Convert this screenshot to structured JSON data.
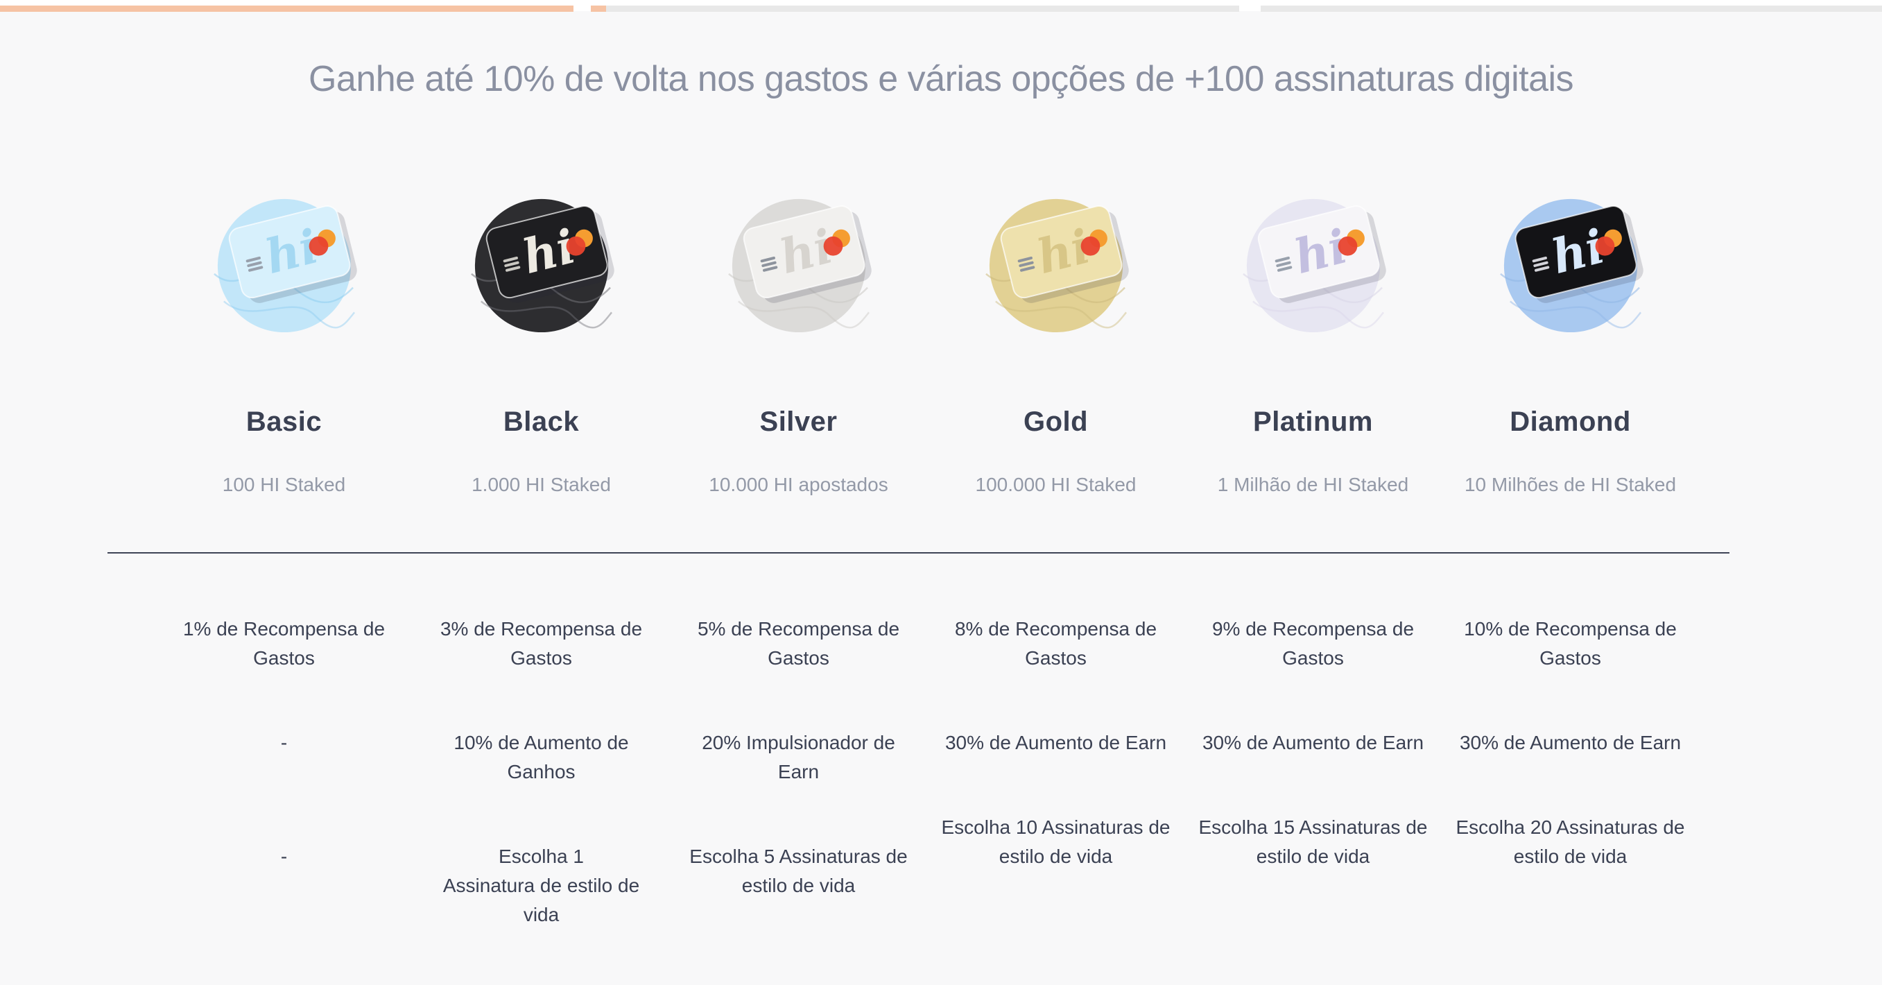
{
  "theme": {
    "accent_orange": "#f6c3a4",
    "track_gray": "#e8e8e8",
    "page_bg": "#f8f8f9",
    "heading_dark": "#3b4153",
    "muted_gray": "#9399a7",
    "title_gray": "#8a90a1",
    "divider_dark": "#3e4456",
    "mc_red": "#e8432e",
    "mc_orange": "#f59d31"
  },
  "carousel": {
    "segments": [
      {
        "state": "complete",
        "fill_pct": 100
      },
      {
        "state": "active",
        "fill_pct": 2.4
      },
      {
        "state": "upcoming",
        "fill_pct": 0
      }
    ]
  },
  "header": {
    "title": "Ganhe até 10% de volta nos gastos e várias opções de +100 assinaturas digitais"
  },
  "tiers": [
    {
      "name": "Basic",
      "staked": "100 HI Staked",
      "icon": {
        "script_text": "hi",
        "circle": "#c2e6f9",
        "card": "#d7f0fc",
        "script": "#a4d8f2",
        "swirl": "#8fcdf0",
        "chip": "#98a0ac"
      },
      "benefits": [
        [
          "1% de Recompensa de",
          "Gastos"
        ],
        [
          "-"
        ],
        [
          "-"
        ]
      ]
    },
    {
      "name": "Black",
      "staked": "1.000 HI Staked",
      "icon": {
        "script_text": "hi",
        "circle": "#2d2d30",
        "card": "#1e1e21",
        "script": "#edeae2",
        "swirl": "#737379",
        "chip": "#c9c7c1"
      },
      "benefits": [
        [
          "3% de Recompensa de",
          "Gastos"
        ],
        [
          "10% de Aumento de",
          "Ganhos"
        ],
        [
          "Escolha 1",
          "Assinatura de estilo de",
          "vida"
        ]
      ]
    },
    {
      "name": "Silver",
      "staked": "10.000 HI apostados",
      "icon": {
        "script_text": "hi",
        "circle": "#dcdbd9",
        "card": "#f1f0ee",
        "script": "#d7d4cf",
        "swirl": "#cac8c4",
        "chip": "#8d939d"
      },
      "benefits": [
        [
          "5% de Recompensa de",
          "Gastos"
        ],
        [
          "20% Impulsionador de",
          "Earn"
        ],
        [
          "Escolha 5 Assinaturas de",
          "estilo de vida"
        ]
      ]
    },
    {
      "name": "Gold",
      "staked": "100.000 HI Staked",
      "icon": {
        "script_text": "hi",
        "circle": "#e2d194",
        "card": "#eee1ad",
        "script": "#d8c687",
        "swirl": "#ccba7c",
        "chip": "#8d939d"
      },
      "benefits": [
        [
          "8% de Recompensa de",
          "Gastos"
        ],
        [
          "30% de Aumento de Earn"
        ],
        [
          "Escolha 10 Assinaturas de",
          "estilo de vida"
        ]
      ]
    },
    {
      "name": "Platinum",
      "staked": "1 Milhão de HI Staked",
      "icon": {
        "script_text": "hi",
        "circle": "#e7e6f2",
        "card": "#f6f5f8",
        "script": "#c3bfe0",
        "swirl": "#d9d5e8",
        "chip": "#98a0ac"
      },
      "benefits": [
        [
          "9% de Recompensa de",
          "Gastos"
        ],
        [
          "30% de Aumento de Earn"
        ],
        [
          "Escolha 15 Assinaturas de",
          "estilo de vida"
        ]
      ]
    },
    {
      "name": "Diamond",
      "staked": "10 Milhões de HI Staked",
      "icon": {
        "script_text": "hi",
        "circle": "#a9c9f0",
        "card": "#131316",
        "script": "#d9e9fb",
        "swirl": "#8fb6e6",
        "chip": "#d3d3d9"
      },
      "benefits": [
        [
          "10% de Recompensa de",
          "Gastos"
        ],
        [
          "30% de Aumento de Earn"
        ],
        [
          "Escolha 20 Assinaturas de",
          "estilo de vida"
        ]
      ]
    }
  ]
}
